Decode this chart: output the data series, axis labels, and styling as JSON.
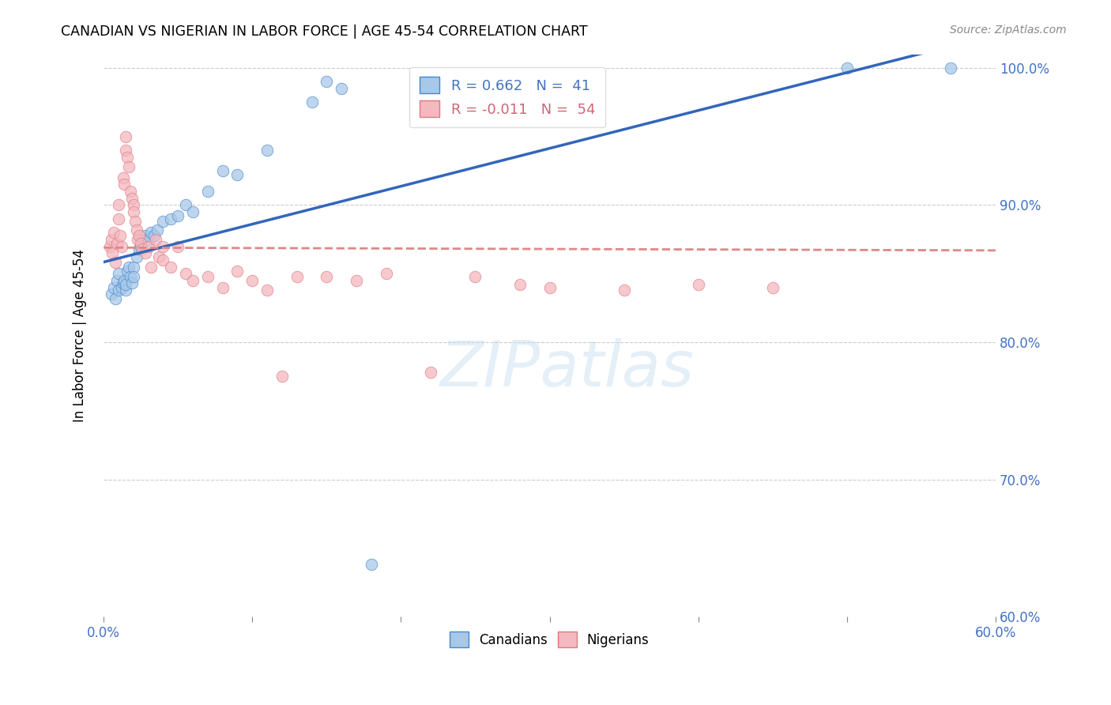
{
  "title": "CANADIAN VS NIGERIAN IN LABOR FORCE | AGE 45-54 CORRELATION CHART",
  "source": "Source: ZipAtlas.com",
  "ylabel": "In Labor Force | Age 45-54",
  "R_canadian": 0.662,
  "N_canadian": 41,
  "R_nigerian": -0.011,
  "N_nigerian": 54,
  "canadian_color": "#a8c8e8",
  "nigerian_color": "#f4b8c0",
  "canadian_edge_color": "#4488cc",
  "nigerian_edge_color": "#e07880",
  "canadian_line_color": "#3366bb",
  "nigerian_line_color": "#dd8888",
  "legend_canadian": "Canadians",
  "legend_nigerian": "Nigerians",
  "watermark": "ZIPatlas",
  "canadian_points_x": [
    0.005,
    0.007,
    0.008,
    0.009,
    0.01,
    0.01,
    0.012,
    0.013,
    0.014,
    0.015,
    0.015,
    0.016,
    0.017,
    0.018,
    0.019,
    0.02,
    0.02,
    0.022,
    0.024,
    0.025,
    0.026,
    0.028,
    0.03,
    0.032,
    0.034,
    0.036,
    0.04,
    0.045,
    0.05,
    0.055,
    0.06,
    0.07,
    0.08,
    0.09,
    0.11,
    0.14,
    0.15,
    0.16,
    0.18,
    0.5,
    0.57
  ],
  "canadian_points_y": [
    0.835,
    0.84,
    0.832,
    0.845,
    0.85,
    0.838,
    0.84,
    0.843,
    0.845,
    0.838,
    0.842,
    0.852,
    0.855,
    0.848,
    0.843,
    0.855,
    0.848,
    0.862,
    0.868,
    0.87,
    0.875,
    0.878,
    0.875,
    0.88,
    0.878,
    0.882,
    0.888,
    0.89,
    0.892,
    0.9,
    0.895,
    0.91,
    0.925,
    0.922,
    0.94,
    0.975,
    0.99,
    0.985,
    0.638,
    1.0,
    1.0
  ],
  "nigerian_points_x": [
    0.004,
    0.005,
    0.006,
    0.007,
    0.008,
    0.009,
    0.01,
    0.01,
    0.011,
    0.012,
    0.013,
    0.014,
    0.015,
    0.015,
    0.016,
    0.017,
    0.018,
    0.019,
    0.02,
    0.02,
    0.021,
    0.022,
    0.023,
    0.024,
    0.025,
    0.026,
    0.028,
    0.03,
    0.032,
    0.035,
    0.037,
    0.04,
    0.04,
    0.045,
    0.05,
    0.055,
    0.06,
    0.07,
    0.08,
    0.09,
    0.1,
    0.11,
    0.12,
    0.13,
    0.15,
    0.17,
    0.19,
    0.22,
    0.25,
    0.28,
    0.3,
    0.35,
    0.4,
    0.45
  ],
  "nigerian_points_y": [
    0.87,
    0.875,
    0.865,
    0.88,
    0.858,
    0.872,
    0.9,
    0.89,
    0.878,
    0.87,
    0.92,
    0.915,
    0.95,
    0.94,
    0.935,
    0.928,
    0.91,
    0.905,
    0.9,
    0.895,
    0.888,
    0.882,
    0.875,
    0.878,
    0.872,
    0.868,
    0.865,
    0.87,
    0.855,
    0.875,
    0.862,
    0.87,
    0.86,
    0.855,
    0.87,
    0.85,
    0.845,
    0.848,
    0.84,
    0.852,
    0.845,
    0.838,
    0.775,
    0.848,
    0.848,
    0.845,
    0.85,
    0.778,
    0.848,
    0.842,
    0.84,
    0.838,
    0.842,
    0.84
  ],
  "xlim": [
    0.0,
    0.6
  ],
  "ylim": [
    0.6,
    1.01
  ],
  "xticks": [
    0.0,
    0.1,
    0.2,
    0.3,
    0.4,
    0.5,
    0.6
  ],
  "yticks": [
    0.6,
    0.7,
    0.8,
    0.9,
    1.0
  ],
  "xtick_labels": [
    "0.0%",
    "",
    "",
    "",
    "",
    "",
    "60.0%"
  ],
  "ytick_labels": [
    "60.0%",
    "70.0%",
    "80.0%",
    "90.0%",
    "100.0%"
  ]
}
